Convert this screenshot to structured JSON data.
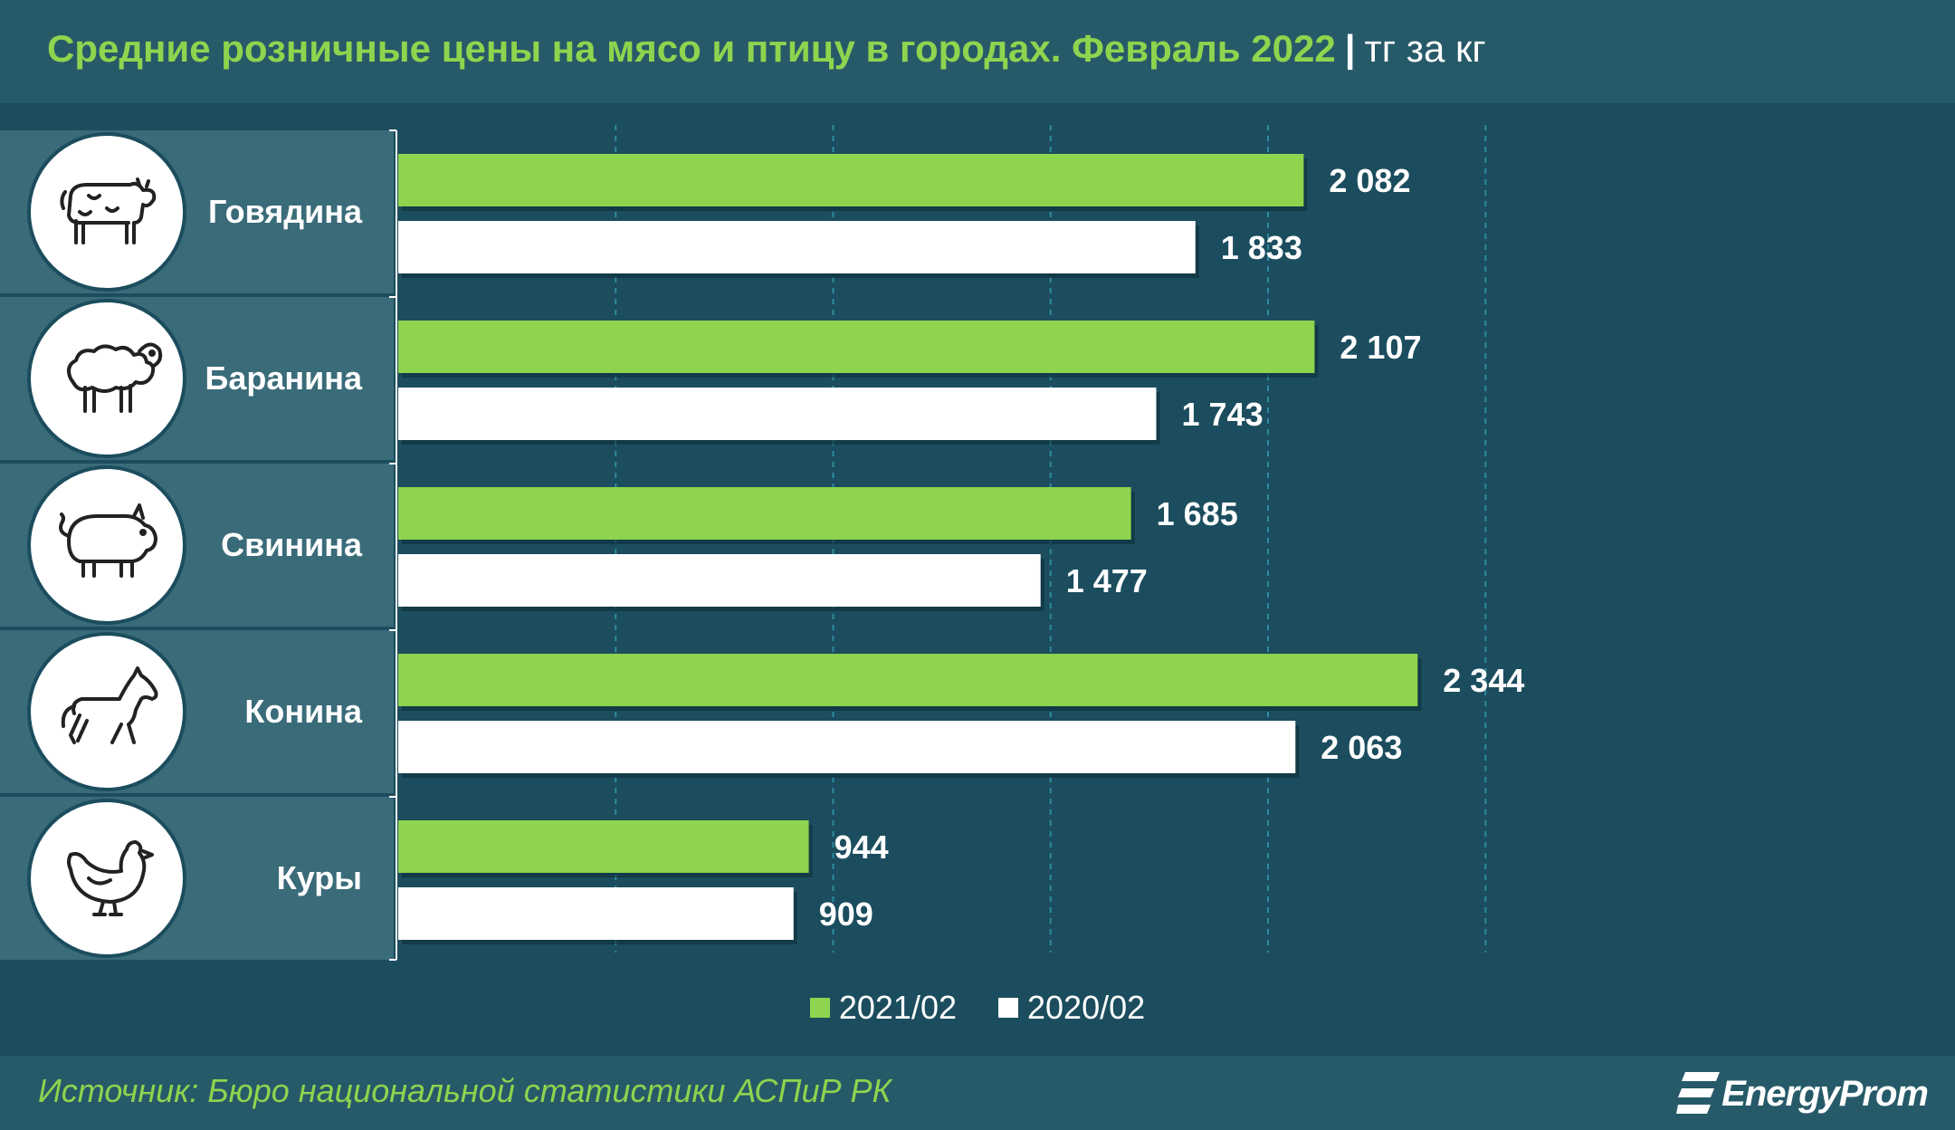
{
  "header": {
    "title": "Средние розничные цены на мясо и птицу в городах. Февраль 2022",
    "separator": "|",
    "unit": "тг за кг"
  },
  "colors": {
    "series_2021": "#8ed44e",
    "series_2020": "#ffffff",
    "background": "#1b4d5e",
    "panel": "#3a6b79"
  },
  "chart_data": {
    "type": "bar",
    "orientation": "horizontal",
    "categories": [
      "Говядина",
      "Баранина",
      "Свинина",
      "Конина",
      "Куры"
    ],
    "category_icons": [
      "cow-icon",
      "sheep-icon",
      "pig-icon",
      "horse-icon",
      "chicken-icon"
    ],
    "series": [
      {
        "name": "2021/02",
        "values": [
          2082,
          2107,
          1685,
          2344,
          944
        ],
        "labels": [
          "2 082",
          "2 107",
          "1 685",
          "2 344",
          "944"
        ]
      },
      {
        "name": "2020/02",
        "values": [
          1833,
          1743,
          1477,
          2063,
          909
        ],
        "labels": [
          "1 833",
          "1 743",
          "1 477",
          "2 063",
          "909"
        ]
      }
    ],
    "xlim": [
      0,
      2500
    ],
    "grid": true,
    "legend_position": "bottom-center"
  },
  "footer": {
    "source": "Источник: Бюро национальной статистики АСПиР РК",
    "brand": "EnergyProm"
  }
}
